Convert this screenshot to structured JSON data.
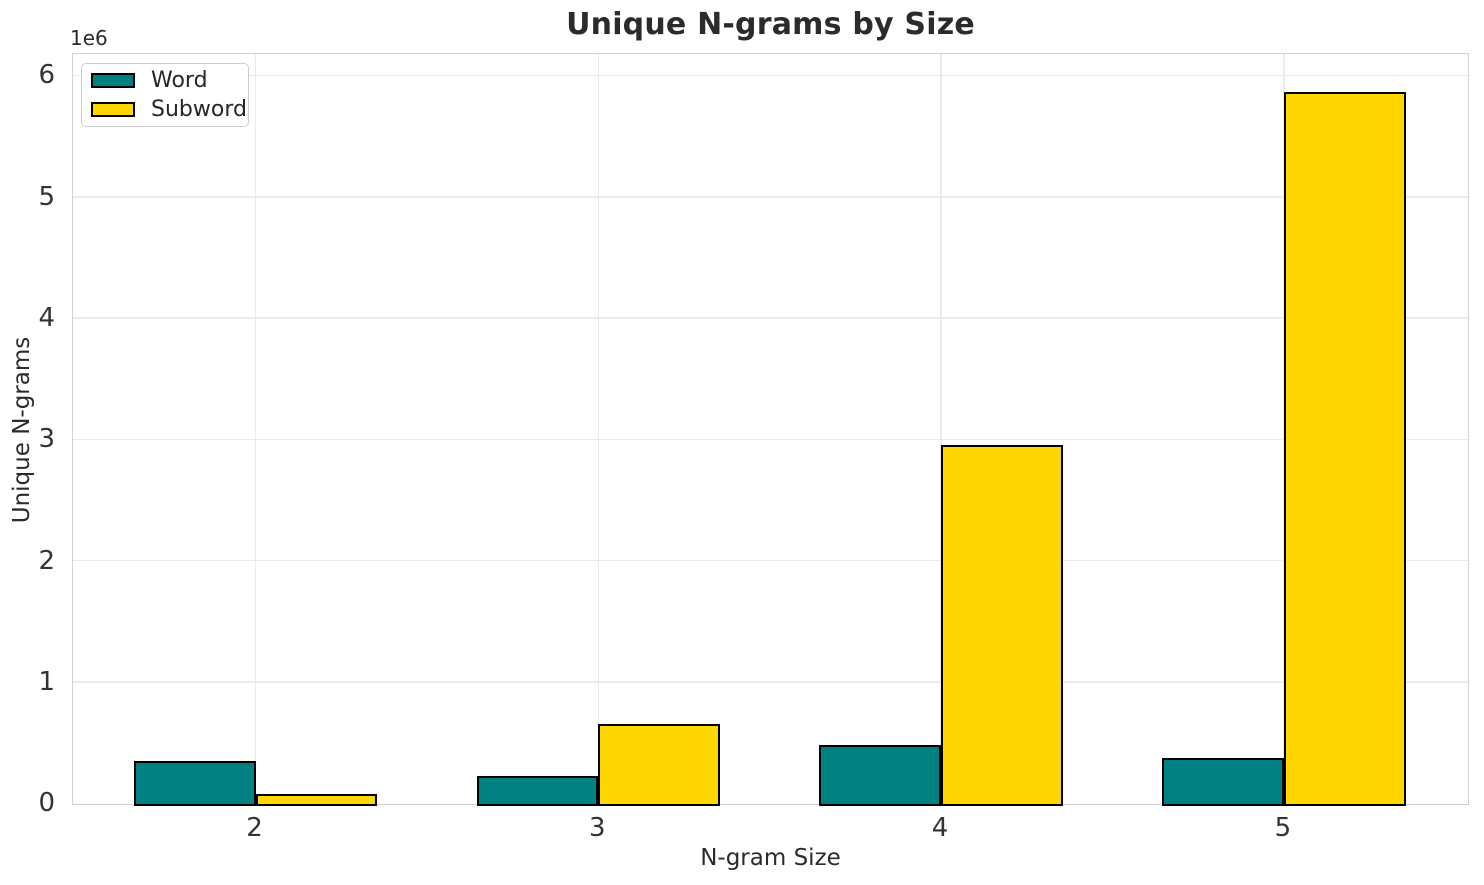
{
  "chart_data": {
    "type": "bar",
    "title": "Unique N-grams by Size",
    "xlabel": "N-gram Size",
    "ylabel": "Unique N-grams",
    "y_axis_offset_text": "1e6",
    "categories": [
      "2",
      "3",
      "4",
      "5"
    ],
    "series": [
      {
        "name": "Word",
        "color": "#008080",
        "values": [
          355000,
          230000,
          490000,
          380000
        ]
      },
      {
        "name": "Subword",
        "color": "#FFD700",
        "values": [
          85000,
          660000,
          2960000,
          5870000
        ]
      }
    ],
    "bar_edge_color": "#000000",
    "ylim": [
      0,
      6170000
    ],
    "yticks": [
      0,
      1000000,
      2000000,
      3000000,
      4000000,
      5000000,
      6000000
    ],
    "ytick_labels": [
      "0",
      "1",
      "2",
      "3",
      "4",
      "5",
      "6"
    ],
    "grid": true,
    "grid_color": "#ebebeb",
    "legend_position": "upper left"
  }
}
